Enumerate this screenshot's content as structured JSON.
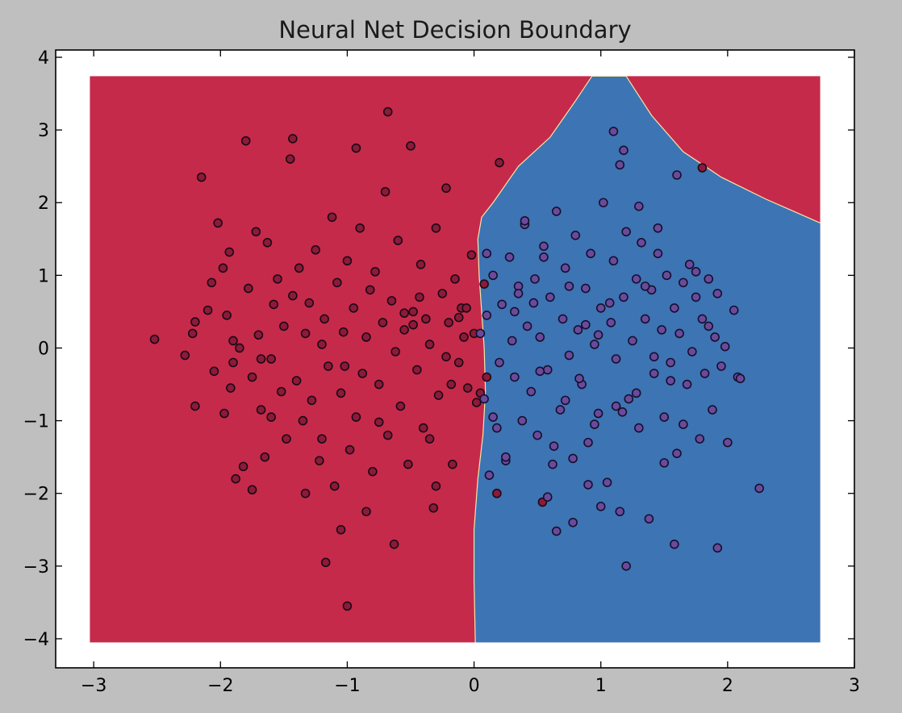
{
  "chart_data": {
    "type": "scatter",
    "title": "Neural Net Decision Boundary",
    "xlabel": "",
    "ylabel": "",
    "xlim": [
      -3.3,
      3.0
    ],
    "ylim": [
      -4.4,
      4.1
    ],
    "x_ticks": [
      {
        "value": -3,
        "label": "−3"
      },
      {
        "value": -2,
        "label": "−2"
      },
      {
        "value": -1,
        "label": "−1"
      },
      {
        "value": 0,
        "label": "0"
      },
      {
        "value": 1,
        "label": "1"
      },
      {
        "value": 2,
        "label": "2"
      },
      {
        "value": 3,
        "label": "3"
      }
    ],
    "y_ticks": [
      {
        "value": -4,
        "label": "−4"
      },
      {
        "value": -3,
        "label": "−3"
      },
      {
        "value": -2,
        "label": "−2"
      },
      {
        "value": -1,
        "label": "−1"
      },
      {
        "value": 0,
        "label": "0"
      },
      {
        "value": 1,
        "label": "1"
      },
      {
        "value": 2,
        "label": "2"
      },
      {
        "value": 3,
        "label": "3"
      },
      {
        "value": 4,
        "label": "4"
      }
    ],
    "grid": false,
    "decision_regions": {
      "extent": {
        "x": [
          -3.03,
          2.73
        ],
        "y": [
          -4.05,
          3.74
        ]
      },
      "class0_color": "#c62a4a",
      "class1_color": "#3d74b3",
      "boundary": [
        [
          0.01,
          -4.05
        ],
        [
          0.0,
          -3.2
        ],
        [
          0.0,
          -2.5
        ],
        [
          0.03,
          -1.8
        ],
        [
          0.07,
          -1.2
        ],
        [
          0.09,
          -0.6
        ],
        [
          0.08,
          0.0
        ],
        [
          0.06,
          0.5
        ],
        [
          0.04,
          1.0
        ],
        [
          0.03,
          1.5
        ],
        [
          0.06,
          1.8
        ],
        [
          0.15,
          2.0
        ],
        [
          0.35,
          2.5
        ],
        [
          0.6,
          2.9
        ],
        [
          0.8,
          3.4
        ],
        [
          0.93,
          3.74
        ],
        [
          1.2,
          3.74
        ],
        [
          1.4,
          3.2
        ],
        [
          1.65,
          2.7
        ],
        [
          1.95,
          2.35
        ],
        [
          2.3,
          2.05
        ],
        [
          2.73,
          1.72
        ]
      ]
    },
    "series": [
      {
        "marker_color": "#8b1a3b",
        "edge_color": "#1a0a12",
        "x": [
          -2.52,
          -2.28,
          -2.22,
          -2.2,
          -2.15,
          -2.1,
          -2.05,
          -2.02,
          -1.98,
          -1.97,
          -1.95,
          -1.93,
          -1.92,
          -1.9,
          -1.88,
          -1.85,
          -1.82,
          -1.8,
          -1.78,
          -1.75,
          -1.72,
          -1.7,
          -1.68,
          -1.65,
          -1.63,
          -1.6,
          -1.58,
          -1.55,
          -1.52,
          -1.5,
          -1.48,
          -1.45,
          -1.43,
          -1.4,
          -1.38,
          -1.35,
          -1.33,
          -1.3,
          -1.28,
          -1.25,
          -1.22,
          -1.2,
          -1.18,
          -1.15,
          -1.12,
          -1.1,
          -1.08,
          -1.05,
          -1.03,
          -1.0,
          -0.98,
          -0.95,
          -0.93,
          -0.9,
          -0.88,
          -0.85,
          -0.82,
          -0.8,
          -0.78,
          -0.75,
          -0.72,
          -0.7,
          -0.68,
          -0.65,
          -0.62,
          -0.6,
          -0.58,
          -0.55,
          -0.52,
          -0.5,
          -0.48,
          -0.45,
          -0.42,
          -0.4,
          -0.38,
          -0.35,
          -0.32,
          -0.3,
          -0.28,
          -0.25,
          -0.22,
          -0.2,
          -0.18,
          -0.15,
          -0.12,
          -0.1,
          -0.08,
          -0.05,
          -0.02,
          0.0,
          0.05,
          0.08,
          0.18,
          0.2,
          0.54,
          1.8,
          -0.68,
          -1.43,
          -1.75,
          -0.93,
          -2.2,
          -1.33,
          -1.0,
          -1.17,
          -0.63,
          -1.05,
          -0.85,
          -0.3,
          -0.17,
          0.02,
          0.1,
          -0.43,
          -1.9,
          -2.07,
          -1.6,
          -1.2,
          -0.75,
          -0.55,
          -0.35,
          -0.22,
          -0.12,
          -0.06,
          -1.68,
          -1.02,
          -0.48
        ],
        "y": [
          0.12,
          -0.1,
          0.2,
          0.36,
          2.35,
          0.52,
          -0.32,
          1.72,
          1.1,
          -0.9,
          0.45,
          1.32,
          -0.55,
          0.1,
          -1.8,
          0.0,
          -1.63,
          2.85,
          0.82,
          -0.4,
          1.6,
          0.18,
          -0.85,
          -1.5,
          1.45,
          -0.15,
          0.6,
          0.95,
          -0.6,
          0.3,
          -1.25,
          2.6,
          0.72,
          -0.45,
          1.1,
          -1.0,
          0.2,
          0.62,
          -0.72,
          1.35,
          -1.55,
          0.05,
          0.4,
          -0.25,
          1.8,
          -1.9,
          0.9,
          -0.62,
          0.22,
          1.2,
          -1.4,
          0.55,
          -0.95,
          1.65,
          -0.35,
          0.15,
          0.8,
          -1.7,
          1.05,
          -0.5,
          0.35,
          2.15,
          -1.2,
          0.65,
          -0.05,
          1.48,
          -0.8,
          0.25,
          -1.6,
          2.78,
          0.5,
          -0.3,
          1.15,
          -1.1,
          0.4,
          0.05,
          -2.2,
          1.65,
          -0.65,
          0.75,
          2.2,
          0.35,
          -0.5,
          0.95,
          -0.2,
          0.55,
          0.15,
          -0.55,
          1.28,
          0.2,
          -0.62,
          0.88,
          -2.0,
          2.55,
          -2.12,
          2.48,
          3.25,
          2.88,
          -1.95,
          2.75,
          -0.8,
          -2.0,
          -3.55,
          -2.95,
          -2.7,
          -2.5,
          -2.25,
          -1.9,
          -1.6,
          -0.75,
          -0.4,
          0.7,
          -0.2,
          0.9,
          -0.95,
          -1.25,
          -1.02,
          0.48,
          -1.25,
          -0.12,
          0.42,
          0.55,
          -0.15,
          -0.25,
          0.32
        ]
      },
      {
        "marker_color": "#6b4a9e",
        "edge_color": "#15102a",
        "x": [
          0.05,
          0.08,
          0.1,
          0.12,
          0.15,
          0.2,
          0.22,
          0.25,
          0.28,
          0.3,
          0.32,
          0.35,
          0.38,
          0.4,
          0.42,
          0.45,
          0.48,
          0.5,
          0.52,
          0.55,
          0.58,
          0.6,
          0.62,
          0.65,
          0.68,
          0.7,
          0.72,
          0.75,
          0.78,
          0.8,
          0.82,
          0.85,
          0.88,
          0.9,
          0.92,
          0.95,
          0.98,
          1.0,
          1.02,
          1.05,
          1.08,
          1.1,
          1.12,
          1.15,
          1.18,
          1.2,
          1.22,
          1.25,
          1.28,
          1.3,
          1.32,
          1.35,
          1.38,
          1.4,
          1.42,
          1.45,
          1.48,
          1.5,
          1.52,
          1.55,
          1.58,
          1.6,
          1.62,
          1.65,
          1.68,
          1.7,
          1.72,
          1.75,
          1.78,
          1.8,
          1.82,
          1.85,
          1.88,
          1.9,
          1.92,
          1.95,
          2.0,
          2.05,
          2.08,
          2.25,
          1.1,
          1.18,
          1.15,
          1.58,
          1.92,
          1.2,
          0.65,
          1.0,
          1.6,
          0.58,
          0.78,
          0.9,
          1.3,
          1.5,
          0.4,
          0.32,
          0.72,
          0.98,
          1.42,
          1.75,
          0.15,
          0.55,
          0.83,
          1.07,
          1.28,
          1.45,
          1.65,
          1.85,
          0.25,
          0.47,
          0.63,
          0.88,
          1.12,
          1.35,
          1.55,
          0.1,
          2.1,
          1.98,
          0.18,
          0.35,
          0.52,
          0.75,
          0.95,
          1.17
        ],
        "y": [
          0.2,
          -0.7,
          0.45,
          -1.75,
          1.0,
          -0.2,
          0.6,
          -1.55,
          1.25,
          0.1,
          -0.4,
          0.85,
          -1.0,
          1.7,
          0.3,
          -0.6,
          0.95,
          -1.2,
          0.15,
          1.4,
          -0.3,
          0.7,
          -1.6,
          1.88,
          -0.85,
          0.4,
          1.1,
          -0.1,
          -2.4,
          1.55,
          0.25,
          -0.5,
          0.82,
          -1.3,
          1.3,
          0.05,
          -0.9,
          0.55,
          2.0,
          -1.85,
          0.35,
          1.2,
          -0.15,
          -2.25,
          0.7,
          1.6,
          -0.7,
          0.1,
          0.95,
          -1.1,
          1.45,
          0.4,
          -2.35,
          0.8,
          -0.35,
          1.65,
          0.25,
          -0.95,
          1.0,
          -0.2,
          0.55,
          -1.45,
          0.2,
          0.9,
          -0.5,
          1.15,
          -0.05,
          0.7,
          -1.25,
          0.4,
          -0.35,
          0.95,
          -0.85,
          0.15,
          0.75,
          -0.25,
          -1.3,
          0.52,
          -0.4,
          -1.93,
          2.98,
          2.72,
          2.52,
          -2.7,
          -2.75,
          -3.0,
          -2.52,
          -2.18,
          2.38,
          -2.05,
          -1.52,
          -1.88,
          1.95,
          -1.58,
          1.75,
          0.5,
          -0.72,
          0.18,
          -0.12,
          1.05,
          -0.95,
          1.25,
          -0.42,
          0.62,
          -0.62,
          1.3,
          -1.05,
          0.3,
          -1.5,
          0.62,
          -1.35,
          0.32,
          -0.8,
          0.85,
          -0.45,
          1.3,
          -0.42,
          0.02,
          -1.1,
          0.75,
          -0.32,
          0.85,
          -1.05,
          -0.88
        ]
      }
    ]
  }
}
